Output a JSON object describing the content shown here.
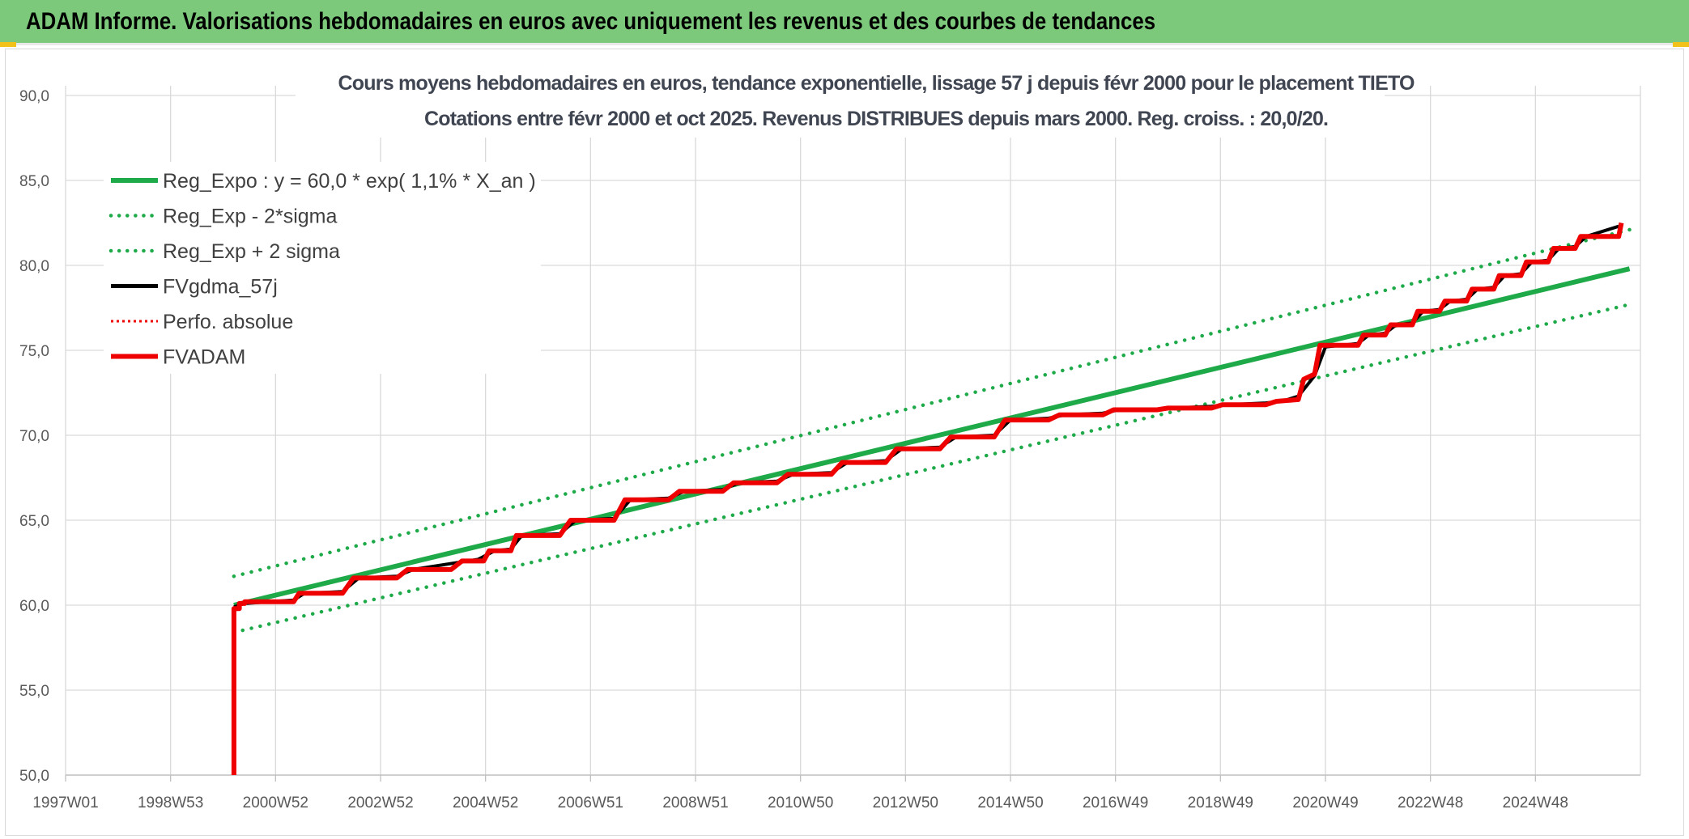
{
  "banner": {
    "title": "ADAM Informe. Valorisations hebdomadaires en euros avec uniquement les revenus et des courbes de tendances"
  },
  "colors": {
    "banner_bg": "#7cc97b",
    "reg_green": "#1faa4a",
    "fvadam_red": "#ee0000",
    "fvgdma_black": "#000000",
    "grid": "#d9d9d9"
  },
  "chart_data": {
    "type": "line",
    "title": "Cours moyens hebdomadaires en euros, tendance exponentielle, lissage 57 j depuis févr 2000 pour le placement TIETO",
    "subtitle": "Cotations entre févr 2000 et oct 2025. Revenus DISTRIBUES depuis mars 2000. Reg. croiss. : 20,0/20.",
    "xlabel": "",
    "ylabel": "",
    "ylim": [
      50,
      90
    ],
    "y_ticks": [
      "50,0",
      "55,0",
      "60,0",
      "65,0",
      "70,0",
      "75,0",
      "80,0",
      "85,0",
      "90,0"
    ],
    "x_range_years": [
      1997.0,
      2026.0
    ],
    "x_tick_labels": [
      "1997W01",
      "1998W53",
      "2000W52",
      "2002W52",
      "2004W52",
      "2006W51",
      "2008W51",
      "2010W50",
      "2012W50",
      "2014W50",
      "2016W49",
      "2018W49",
      "2020W49",
      "2022W48",
      "2024W48"
    ],
    "grid": true,
    "legend_position": "top-left",
    "legend": [
      {
        "label": "Reg_Expo : y = 60,0 * exp( 1,1% *  X_an )",
        "style": "solid-green"
      },
      {
        "label": "Reg_Exp - 2*sigma",
        "style": "dotted-green"
      },
      {
        "label": "Reg_Exp + 2 sigma",
        "style": "dotted-green"
      },
      {
        "label": "FVgdma_57j",
        "style": "solid-black"
      },
      {
        "label": "Perfo. absolue",
        "style": "dotted-red"
      },
      {
        "label": "FVADAM",
        "style": "solid-red"
      }
    ],
    "series": [
      {
        "name": "Reg_Expo : y = 60,0 * exp( 1,1% *  X_an )",
        "x": [
          2000.1,
          2025.8
        ],
        "y": [
          60.0,
          79.8
        ]
      },
      {
        "name": "Reg_Exp - 2*sigma",
        "x": [
          2000.1,
          2025.8
        ],
        "y": [
          58.4,
          77.7
        ]
      },
      {
        "name": "Reg_Exp + 2 sigma",
        "x": [
          2000.1,
          2025.8
        ],
        "y": [
          61.7,
          82.1
        ]
      },
      {
        "name": "FVADAM",
        "x": [
          2000.1,
          2000.1,
          2000.2,
          2000.2,
          2000.3,
          2000.3,
          2001.2,
          2001.3,
          2002.1,
          2002.3,
          2003.1,
          2003.3,
          2004.1,
          2004.3,
          2004.7,
          2004.8,
          2005.2,
          2005.3,
          2006.1,
          2006.3,
          2007.1,
          2007.3,
          2008.1,
          2008.3,
          2009.1,
          2009.3,
          2010.1,
          2010.3,
          2011.1,
          2011.3,
          2012.1,
          2012.3,
          2013.1,
          2013.3,
          2014.1,
          2014.3,
          2015.1,
          2015.3,
          2016.1,
          2016.3,
          2017.1,
          2017.3,
          2018.1,
          2018.3,
          2019.1,
          2019.3,
          2019.7,
          2019.8,
          2020.0,
          2020.1,
          2020.8,
          2020.9,
          2021.3,
          2021.4,
          2021.8,
          2021.9,
          2022.3,
          2022.4,
          2022.8,
          2022.9,
          2023.3,
          2023.4,
          2023.8,
          2023.9,
          2024.3,
          2024.4,
          2024.8,
          2024.9,
          2025.3,
          2025.4,
          2025.6,
          2025.65
        ],
        "y": [
          50.0,
          59.8,
          59.8,
          60.1,
          60.1,
          60.2,
          60.2,
          60.7,
          60.7,
          61.6,
          61.6,
          62.1,
          62.1,
          62.6,
          62.6,
          63.2,
          63.2,
          64.1,
          64.1,
          65.0,
          65.0,
          66.2,
          66.2,
          66.7,
          66.7,
          67.2,
          67.2,
          67.7,
          67.7,
          68.4,
          68.4,
          69.2,
          69.2,
          69.9,
          69.9,
          70.9,
          70.9,
          71.2,
          71.2,
          71.5,
          71.5,
          71.6,
          71.6,
          71.8,
          71.8,
          72.0,
          72.1,
          73.3,
          73.6,
          75.3,
          75.3,
          75.9,
          75.9,
          76.5,
          76.5,
          77.3,
          77.3,
          77.9,
          77.9,
          78.6,
          78.6,
          79.4,
          79.4,
          80.2,
          80.2,
          81.0,
          81.0,
          81.7,
          81.7,
          81.7,
          81.7,
          82.5
        ]
      },
      {
        "name": "FVgdma_57j",
        "x": [
          2000.1,
          2000.3,
          2001.2,
          2001.4,
          2002.1,
          2002.4,
          2003.1,
          2003.4,
          2004.6,
          2004.9,
          2005.2,
          2005.4,
          2006.1,
          2006.4,
          2007.1,
          2007.4,
          2008.1,
          2008.4,
          2009.1,
          2009.4,
          2010.1,
          2010.4,
          2011.1,
          2011.4,
          2012.1,
          2012.4,
          2013.1,
          2013.4,
          2014.1,
          2014.4,
          2015.1,
          2015.4,
          2016.1,
          2016.4,
          2017.1,
          2017.4,
          2018.1,
          2018.4,
          2019.1,
          2019.4,
          2019.7,
          2020.0,
          2020.2,
          2020.8,
          2021.0,
          2021.3,
          2021.5,
          2021.8,
          2022.0,
          2022.3,
          2022.5,
          2022.8,
          2023.0,
          2023.3,
          2023.5,
          2023.8,
          2024.0,
          2024.3,
          2024.5,
          2024.8,
          2025.0,
          2025.6
        ],
        "y": [
          59.9,
          60.1,
          60.3,
          60.7,
          60.8,
          61.6,
          61.7,
          62.1,
          62.7,
          63.2,
          63.3,
          64.1,
          64.2,
          65.0,
          65.1,
          66.2,
          66.3,
          66.7,
          66.8,
          67.2,
          67.3,
          67.7,
          67.8,
          68.4,
          68.5,
          69.2,
          69.3,
          69.9,
          70.0,
          70.9,
          71.0,
          71.2,
          71.3,
          71.5,
          71.5,
          71.6,
          71.7,
          71.8,
          71.9,
          72.0,
          72.3,
          73.5,
          75.2,
          75.4,
          75.9,
          76.0,
          76.5,
          76.6,
          77.3,
          77.4,
          77.9,
          78.0,
          78.6,
          78.7,
          79.4,
          79.5,
          80.2,
          80.3,
          81.0,
          81.1,
          81.7,
          82.3
        ]
      }
    ]
  }
}
